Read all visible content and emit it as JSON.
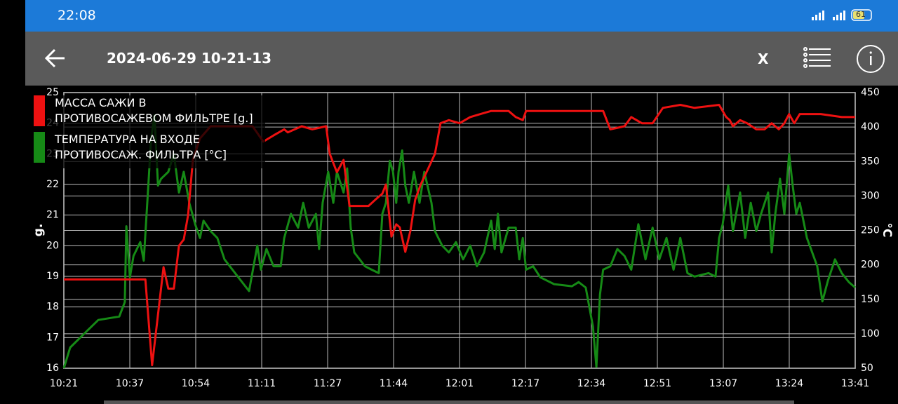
{
  "status_bar": {
    "time": "22:08",
    "battery": "61"
  },
  "toolbar": {
    "title": "2024-06-29 10-21-13",
    "close": "X"
  },
  "chart_data": {
    "type": "line",
    "ylabel": "g.",
    "y2label": "°C",
    "grid": true,
    "legend": "upper left",
    "xlim": [
      621,
      821
    ],
    "xticks": [
      {
        "value": 621,
        "label": "10:21"
      },
      {
        "value": 637.67,
        "label": "10:37"
      },
      {
        "value": 654.33,
        "label": "10:54"
      },
      {
        "value": 671,
        "label": "11:11"
      },
      {
        "value": 687.67,
        "label": "11:27"
      },
      {
        "value": 704.33,
        "label": "11:44"
      },
      {
        "value": 721,
        "label": "12:01"
      },
      {
        "value": 737.67,
        "label": "12:17"
      },
      {
        "value": 754.33,
        "label": "12:34"
      },
      {
        "value": 771,
        "label": "12:51"
      },
      {
        "value": 787.67,
        "label": "13:07"
      },
      {
        "value": 804.33,
        "label": "13:24"
      },
      {
        "value": 821,
        "label": "13:41"
      }
    ],
    "ylim": [
      16,
      25
    ],
    "yticks": [
      16,
      17,
      18,
      19,
      20,
      21,
      22,
      23,
      24,
      25
    ],
    "y2lim": [
      50,
      450
    ],
    "y2ticks": [
      50,
      100,
      150,
      200,
      250,
      300,
      350,
      400,
      450
    ],
    "series": [
      {
        "name": "МАССА САЖИ В ПРОТИВОСАЖЕВОМ ФИЛЬТРЕ [g.]",
        "color": "#ee1111",
        "axis": "y",
        "x": [
          621.0,
          641.6,
          643.3,
          646.2,
          647.4,
          648.8,
          650.1,
          651.3,
          652.4,
          653.6,
          655.4,
          658.1,
          668.7,
          671.4,
          674.0,
          676.7,
          677.6,
          681.1,
          683.8,
          687.3,
          688.2,
          690.0,
          691.7,
          693.2,
          698.0,
          699.7,
          701.5,
          702.4,
          703.8,
          705.0,
          705.9,
          707.3,
          708.6,
          709.8,
          711.2,
          713.0,
          714.8,
          716.2,
          718.3,
          721.0,
          723.7,
          726.3,
          729.0,
          733.4,
          735.2,
          737.0,
          737.8,
          757.3,
          759.1,
          762.7,
          764.4,
          767.1,
          769.8,
          772.4,
          776.8,
          780.4,
          786.6,
          788.4,
          789.3,
          790.1,
          791.9,
          793.7,
          796.0,
          798.1,
          799.9,
          801.7,
          803.1,
          804.3,
          805.6,
          807.0,
          812.3,
          817.6,
          821.0
        ],
        "values": [
          18.9,
          18.9,
          16.1,
          19.3,
          18.6,
          18.6,
          20,
          20.2,
          21,
          22.8,
          23.5,
          23.9,
          23.9,
          23.4,
          23.6,
          23.8,
          23.7,
          23.9,
          23.8,
          23.9,
          23,
          22.4,
          22.8,
          21.3,
          21.3,
          21.5,
          21.7,
          22,
          20.3,
          20.7,
          20.6,
          19.8,
          20.5,
          21.5,
          22,
          22.5,
          23,
          24,
          24.1,
          24,
          24.2,
          24.3,
          24.4,
          24.4,
          24.2,
          24.1,
          24.4,
          24.4,
          23.8,
          23.9,
          24.2,
          24,
          24,
          24.5,
          24.6,
          24.5,
          24.6,
          24.2,
          24.1,
          23.9,
          24.1,
          24,
          23.8,
          23.8,
          24,
          23.8,
          24,
          24.3,
          24,
          24.3,
          24.3,
          24.2,
          24.2
        ]
      },
      {
        "name": "ТЕМПЕРАТУРА НА ВХОДЕ ПРОТИВОСАЖ. ФИЛЬТРА [°C]",
        "color": "#168a16",
        "axis": "y2",
        "x": [
          621.0,
          622.6,
          626.1,
          629.7,
          635.0,
          636.4,
          636.8,
          637.7,
          638.6,
          640.3,
          641.2,
          642.5,
          643.0,
          643.9,
          644.8,
          645.6,
          647.4,
          648.8,
          650.1,
          651.3,
          652.7,
          654.2,
          655.4,
          656.3,
          658.1,
          659.8,
          661.6,
          665.1,
          667.8,
          669.9,
          670.8,
          672.2,
          674.0,
          675.8,
          676.7,
          678.4,
          680.2,
          681.5,
          682.9,
          684.7,
          685.5,
          686.4,
          687.8,
          689.1,
          690.0,
          691.7,
          692.6,
          693.5,
          694.4,
          697.1,
          698.8,
          700.6,
          701.5,
          702.4,
          703.4,
          704.2,
          705.0,
          705.6,
          706.5,
          707.3,
          708.2,
          709.5,
          710.9,
          712.1,
          713.9,
          714.8,
          716.6,
          718.3,
          720.1,
          721.9,
          723.7,
          725.4,
          727.2,
          729.0,
          729.9,
          730.7,
          731.6,
          733.4,
          735.2,
          736.1,
          737.0,
          737.8,
          739.6,
          741.4,
          744.9,
          749.4,
          751.1,
          752.9,
          754.7,
          755.6,
          756.5,
          757.3,
          759.1,
          760.9,
          762.7,
          764.4,
          766.2,
          768.0,
          769.8,
          771.5,
          773.3,
          775.1,
          776.8,
          778.6,
          780.4,
          783.9,
          785.7,
          786.6,
          787.5,
          788.9,
          790.1,
          791.9,
          793.2,
          794.6,
          796.0,
          797.2,
          799.0,
          799.9,
          800.8,
          802.0,
          803.1,
          804.3,
          805.2,
          806.1,
          807.0,
          808.8,
          811.4,
          812.7,
          814.1,
          815.9,
          817.6,
          819.4,
          821.0
        ],
        "values": [
          50,
          80,
          100,
          120,
          125,
          146,
          256,
          182,
          213,
          233,
          206,
          330,
          381,
          417,
          315,
          325,
          335,
          361,
          305,
          335,
          290,
          259,
          239,
          264,
          249,
          239,
          208,
          182,
          162,
          228,
          193,
          223,
          198,
          198,
          239,
          274,
          254,
          290,
          254,
          274,
          223,
          290,
          335,
          290,
          335,
          305,
          340,
          254,
          218,
          198,
          193,
          188,
          274,
          290,
          351,
          335,
          290,
          335,
          366,
          315,
          290,
          335,
          290,
          335,
          290,
          249,
          228,
          218,
          233,
          208,
          228,
          198,
          218,
          264,
          223,
          274,
          218,
          254,
          254,
          208,
          239,
          193,
          198,
          182,
          172,
          169,
          175,
          167,
          111,
          52,
          157,
          193,
          198,
          223,
          213,
          193,
          259,
          208,
          254,
          208,
          239,
          193,
          239,
          188,
          183,
          188,
          183,
          239,
          259,
          315,
          249,
          305,
          239,
          290,
          249,
          274,
          305,
          218,
          274,
          325,
          274,
          361,
          315,
          274,
          290,
          239,
          198,
          147,
          177,
          208,
          188,
          175,
          167
        ]
      }
    ]
  }
}
